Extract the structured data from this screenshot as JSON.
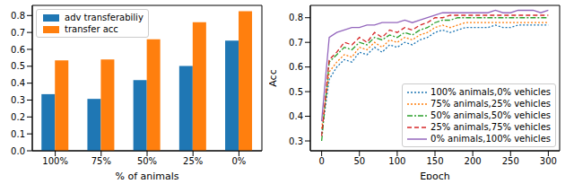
{
  "chart_data": [
    {
      "type": "bar",
      "x_label": "% of animals",
      "categories": [
        "100%",
        "75%",
        "50%",
        "25%",
        "0%"
      ],
      "series": [
        {
          "name": "adv transferabiliy",
          "color": "#1f77b4",
          "values": [
            0.335,
            0.307,
            0.418,
            0.502,
            0.652
          ]
        },
        {
          "name": "transfer acc",
          "color": "#ff7f0e",
          "values": [
            0.535,
            0.54,
            0.66,
            0.76,
            0.825
          ]
        }
      ],
      "ylim": [
        0,
        0.86
      ],
      "yticks": [
        {
          "value": 0,
          "label": "0.0"
        },
        0.1,
        0.2,
        0.3,
        0.4,
        0.5,
        0.6,
        0.7,
        0.8
      ],
      "legend": "upper left",
      "grid": false
    },
    {
      "type": "line",
      "x_label": "Epoch",
      "y_label": "Acc",
      "x": [
        0,
        10,
        20,
        30,
        40,
        50,
        60,
        70,
        80,
        90,
        100,
        110,
        120,
        130,
        140,
        150,
        160,
        170,
        180,
        190,
        200,
        210,
        220,
        230,
        240,
        250,
        260,
        270,
        280,
        290,
        300
      ],
      "series": [
        {
          "name": "100% animals,0% vehicles",
          "color": "#1f77b4",
          "line_style": "dotted",
          "values": [
            0.33,
            0.55,
            0.6,
            0.63,
            0.62,
            0.66,
            0.65,
            0.68,
            0.66,
            0.69,
            0.68,
            0.7,
            0.69,
            0.71,
            0.72,
            0.74,
            0.75,
            0.74,
            0.75,
            0.76,
            0.76,
            0.76,
            0.76,
            0.77,
            0.76,
            0.76,
            0.77,
            0.77,
            0.77,
            0.77,
            0.77
          ]
        },
        {
          "name": "75% animals,25% vehicles",
          "color": "#ff7f0e",
          "line_style": "dotted",
          "values": [
            0.35,
            0.58,
            0.62,
            0.65,
            0.64,
            0.68,
            0.67,
            0.7,
            0.68,
            0.71,
            0.7,
            0.72,
            0.71,
            0.73,
            0.74,
            0.76,
            0.77,
            0.76,
            0.77,
            0.78,
            0.78,
            0.78,
            0.78,
            0.78,
            0.78,
            0.78,
            0.78,
            0.78,
            0.78,
            0.78,
            0.78
          ]
        },
        {
          "name": "50% animals,50% vehicles",
          "color": "#2ca02c",
          "line_style": "dashdot",
          "values": [
            0.3,
            0.62,
            0.65,
            0.68,
            0.67,
            0.7,
            0.69,
            0.72,
            0.71,
            0.73,
            0.72,
            0.74,
            0.73,
            0.75,
            0.76,
            0.78,
            0.79,
            0.79,
            0.8,
            0.8,
            0.8,
            0.8,
            0.8,
            0.8,
            0.8,
            0.8,
            0.8,
            0.8,
            0.8,
            0.8,
            0.8
          ]
        },
        {
          "name": "25% animals,75% vehicles",
          "color": "#d62728",
          "line_style": "dashed",
          "values": [
            0.32,
            0.63,
            0.66,
            0.7,
            0.69,
            0.72,
            0.7,
            0.74,
            0.72,
            0.75,
            0.74,
            0.76,
            0.75,
            0.77,
            0.78,
            0.8,
            0.8,
            0.81,
            0.81,
            0.81,
            0.81,
            0.81,
            0.81,
            0.81,
            0.81,
            0.81,
            0.81,
            0.81,
            0.81,
            0.81,
            0.81
          ]
        },
        {
          "name": "0% animals,100% vehicles",
          "color": "#9467bd",
          "line_style": "solid",
          "values": [
            0.38,
            0.72,
            0.74,
            0.75,
            0.76,
            0.76,
            0.77,
            0.77,
            0.78,
            0.78,
            0.78,
            0.79,
            0.78,
            0.79,
            0.8,
            0.81,
            0.82,
            0.82,
            0.82,
            0.82,
            0.82,
            0.82,
            0.82,
            0.83,
            0.82,
            0.82,
            0.83,
            0.83,
            0.83,
            0.82,
            0.83
          ]
        }
      ],
      "xlim": [
        -15,
        315
      ],
      "xticks": [
        0,
        50,
        100,
        150,
        200,
        250,
        300
      ],
      "ylim": [
        0.26,
        0.85
      ],
      "yticks": [
        0.3,
        0.4,
        0.5,
        0.6,
        0.7,
        0.8
      ],
      "legend": "lower right",
      "grid": false
    }
  ]
}
